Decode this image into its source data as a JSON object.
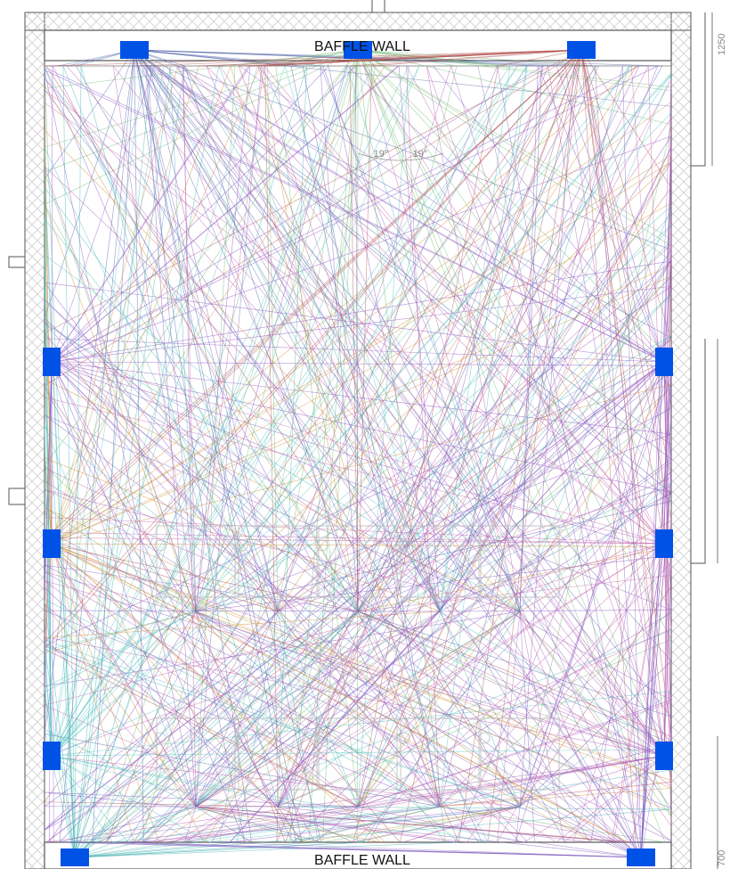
{
  "labels": {
    "top_wall": "BAFFLE WALL",
    "bottom_wall": "BAFFLE WALL",
    "angle_left": "19°",
    "angle_right": "19°",
    "dim_top": "1250",
    "dim_bottom": "700"
  },
  "colors": {
    "speaker": "#0052e6",
    "wall_hatch": "#c8c8c8",
    "wall_outline": "#555555"
  },
  "speakers": [
    {
      "id": "front-left",
      "color": "#4a5fa8"
    },
    {
      "id": "front-center",
      "color": "#6cb86a"
    },
    {
      "id": "front-right",
      "color": "#b04a4a"
    },
    {
      "id": "side-left-front",
      "color": "#8a4cc2"
    },
    {
      "id": "side-right-front",
      "color": "#8a4cc2"
    },
    {
      "id": "side-left-rear",
      "color": "#d08a2a"
    },
    {
      "id": "side-right-rear",
      "color": "#c45aa8"
    },
    {
      "id": "rear-side-left",
      "color": "#4cc0c0"
    },
    {
      "id": "rear-side-right",
      "color": "#b05ab0"
    },
    {
      "id": "rear-left",
      "color": "#40b0b0"
    },
    {
      "id": "rear-right",
      "color": "#8060c0"
    }
  ]
}
